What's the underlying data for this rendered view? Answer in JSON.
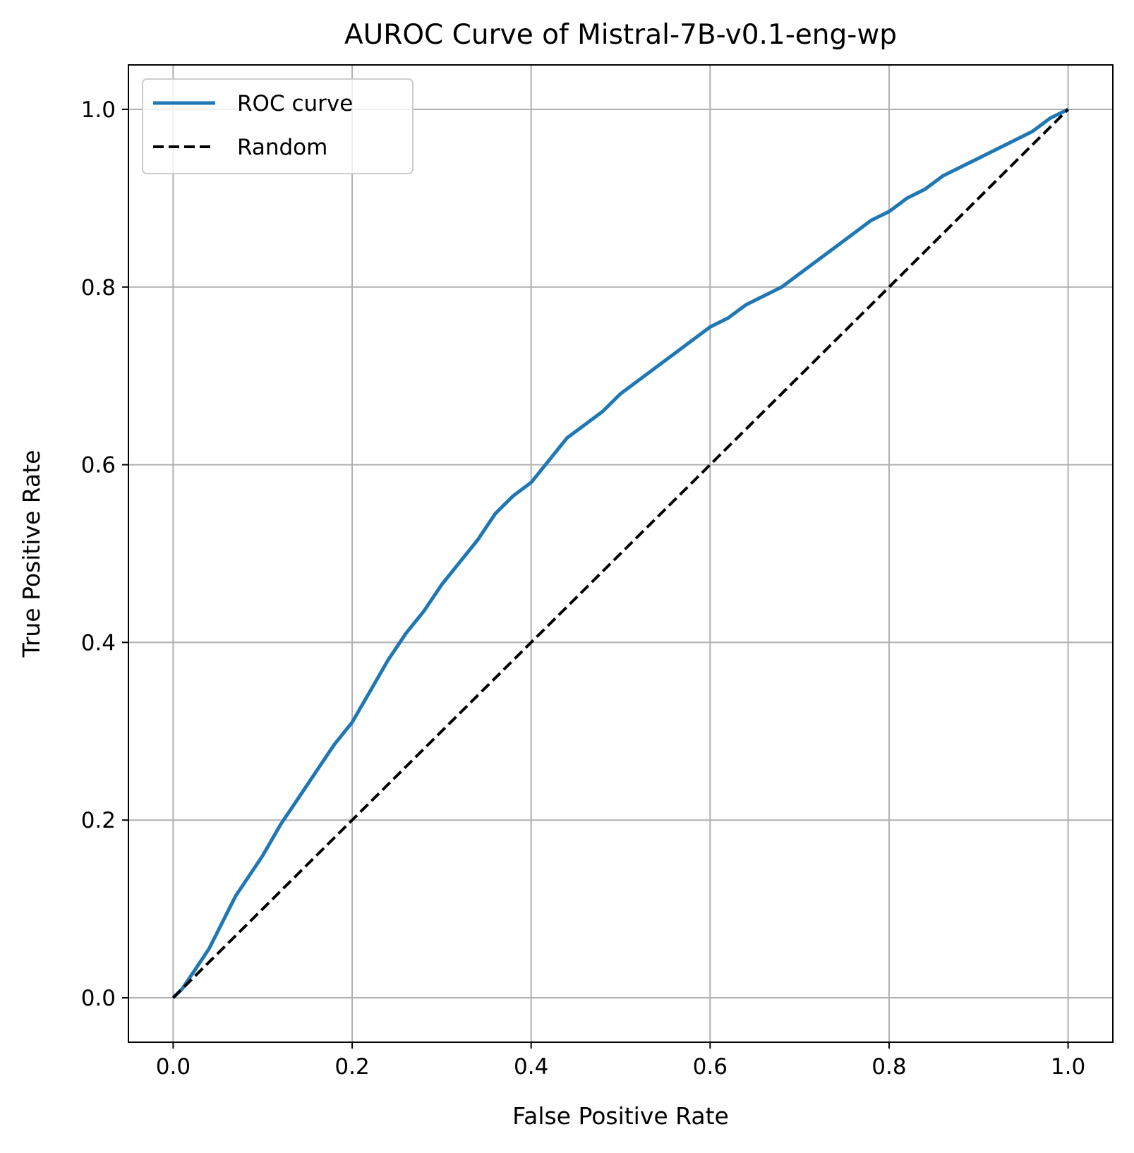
{
  "chart_data": {
    "type": "line",
    "title": "AUROC Curve of Mistral-7B-v0.1-eng-wp",
    "xlabel": "False Positive Rate",
    "ylabel": "True Positive Rate",
    "xlim": [
      -0.05,
      1.05
    ],
    "ylim": [
      -0.05,
      1.05
    ],
    "xticks": [
      "0.0",
      "0.2",
      "0.4",
      "0.6",
      "0.8",
      "1.0"
    ],
    "yticks": [
      "0.0",
      "0.2",
      "0.4",
      "0.6",
      "0.8",
      "1.0"
    ],
    "grid": true,
    "legend_position": "upper-left",
    "series": [
      {
        "name": "ROC curve",
        "color": "#1f77b4",
        "style": "solid",
        "x": [
          0.0,
          0.01,
          0.02,
          0.03,
          0.04,
          0.05,
          0.06,
          0.07,
          0.08,
          0.1,
          0.12,
          0.14,
          0.16,
          0.18,
          0.2,
          0.22,
          0.24,
          0.26,
          0.28,
          0.3,
          0.32,
          0.34,
          0.36,
          0.38,
          0.4,
          0.42,
          0.44,
          0.46,
          0.48,
          0.5,
          0.52,
          0.54,
          0.56,
          0.58,
          0.6,
          0.62,
          0.64,
          0.66,
          0.68,
          0.7,
          0.72,
          0.74,
          0.76,
          0.78,
          0.8,
          0.82,
          0.84,
          0.86,
          0.88,
          0.9,
          0.92,
          0.94,
          0.96,
          0.98,
          1.0
        ],
        "y": [
          0.0,
          0.01,
          0.025,
          0.04,
          0.055,
          0.075,
          0.095,
          0.115,
          0.13,
          0.16,
          0.195,
          0.225,
          0.255,
          0.285,
          0.31,
          0.345,
          0.38,
          0.41,
          0.435,
          0.465,
          0.49,
          0.515,
          0.545,
          0.565,
          0.58,
          0.605,
          0.63,
          0.645,
          0.66,
          0.68,
          0.695,
          0.71,
          0.725,
          0.74,
          0.755,
          0.765,
          0.78,
          0.79,
          0.8,
          0.815,
          0.83,
          0.845,
          0.86,
          0.875,
          0.885,
          0.9,
          0.91,
          0.925,
          0.935,
          0.945,
          0.955,
          0.965,
          0.975,
          0.99,
          1.0
        ]
      },
      {
        "name": "Random",
        "color": "#000000",
        "style": "dashed",
        "x": [
          0.0,
          1.0
        ],
        "y": [
          0.0,
          1.0
        ]
      }
    ]
  }
}
